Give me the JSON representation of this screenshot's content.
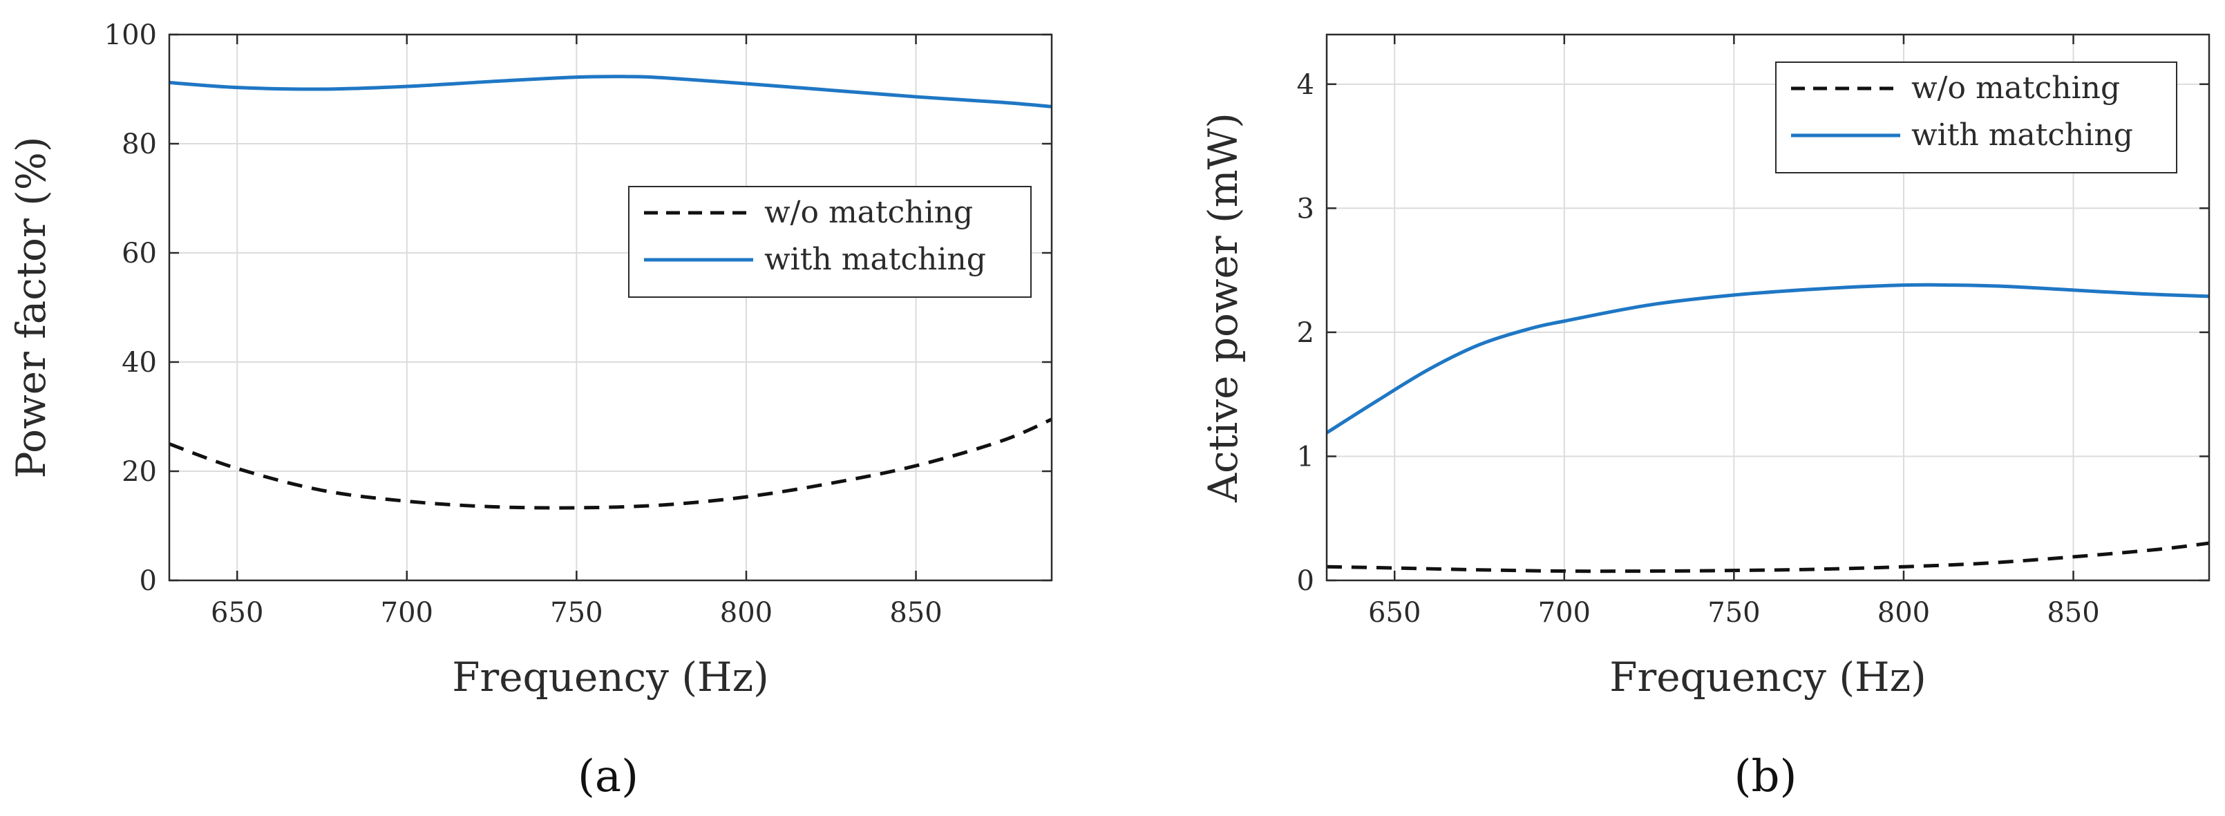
{
  "chart_data": [
    {
      "id": "a",
      "type": "line",
      "caption": "(a)",
      "title": "",
      "xlabel": "Frequency (Hz)",
      "ylabel": "Power factor (%)",
      "xlim": [
        630,
        890
      ],
      "ylim": [
        0,
        100
      ],
      "xticks": [
        650,
        700,
        750,
        800,
        850
      ],
      "yticks": [
        0,
        20,
        40,
        60,
        80,
        100
      ],
      "xtick_labels": [
        "650",
        "700",
        "750",
        "800",
        "850"
      ],
      "ytick_labels": [
        "0",
        "20",
        "40",
        "60",
        "80",
        "100"
      ],
      "grid": true,
      "legend_position": "center-right",
      "series": [
        {
          "name": "w/o matching",
          "style": "dashed",
          "color": "#111111",
          "x": [
            630,
            650,
            675,
            700,
            725,
            750,
            775,
            800,
            825,
            850,
            875,
            890
          ],
          "y": [
            25,
            20.5,
            16.5,
            14.5,
            13.5,
            13.3,
            13.8,
            15.3,
            17.8,
            21.0,
            25.5,
            29.5
          ]
        },
        {
          "name": "with matching",
          "style": "solid",
          "color": "#1f77c4",
          "x": [
            630,
            650,
            675,
            700,
            725,
            750,
            765,
            775,
            800,
            825,
            850,
            875,
            890
          ],
          "y": [
            91.2,
            90.3,
            90.0,
            90.5,
            91.4,
            92.2,
            92.3,
            92.1,
            91.0,
            89.8,
            88.6,
            87.6,
            86.8
          ]
        }
      ]
    },
    {
      "id": "b",
      "type": "line",
      "caption": "(b)",
      "title": "",
      "xlabel": "Frequency (Hz)",
      "ylabel": "Active power (mW)",
      "xlim": [
        630,
        890
      ],
      "ylim": [
        0,
        4.4
      ],
      "xticks": [
        650,
        700,
        750,
        800,
        850
      ],
      "yticks": [
        0,
        1,
        2,
        3,
        4
      ],
      "xtick_labels": [
        "650",
        "700",
        "750",
        "800",
        "850"
      ],
      "ytick_labels": [
        "0",
        "1",
        "2",
        "3",
        "4"
      ],
      "grid": true,
      "legend_position": "top-right",
      "series": [
        {
          "name": "w/o matching",
          "style": "dashed",
          "color": "#111111",
          "x": [
            630,
            650,
            675,
            700,
            725,
            750,
            775,
            800,
            825,
            850,
            875,
            890
          ],
          "y": [
            0.11,
            0.1,
            0.085,
            0.075,
            0.075,
            0.08,
            0.09,
            0.11,
            0.14,
            0.19,
            0.25,
            0.3
          ]
        },
        {
          "name": "with matching",
          "style": "solid",
          "color": "#1f77c4",
          "x": [
            630,
            645,
            660,
            675,
            690,
            700,
            725,
            750,
            775,
            800,
            815,
            830,
            850,
            870,
            890
          ],
          "y": [
            1.19,
            1.45,
            1.7,
            1.9,
            2.03,
            2.09,
            2.22,
            2.3,
            2.35,
            2.38,
            2.38,
            2.37,
            2.34,
            2.31,
            2.29
          ]
        }
      ]
    }
  ]
}
